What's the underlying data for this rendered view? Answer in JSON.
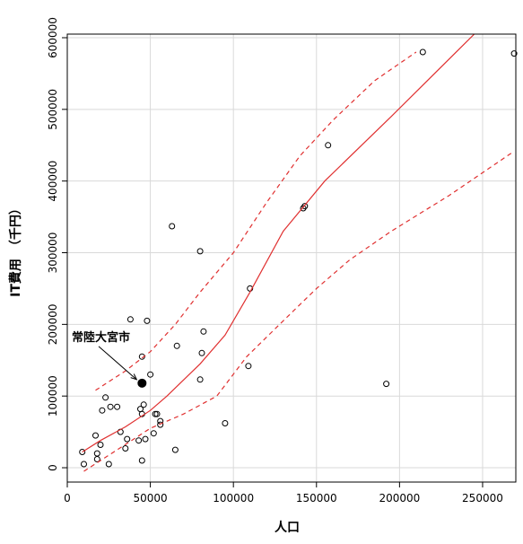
{
  "chart_data": {
    "type": "scatter",
    "title": "",
    "xlabel": "人口",
    "ylabel": "IT費用　（千円）",
    "xlim": [
      0,
      270000
    ],
    "ylim": [
      -20000,
      605000
    ],
    "x_ticks": [
      0,
      50000,
      100000,
      150000,
      200000,
      250000
    ],
    "y_ticks": [
      0,
      100000,
      200000,
      300000,
      400000,
      500000,
      600000
    ],
    "x_tick_labels": [
      "0",
      "50000",
      "100000",
      "150000",
      "200000",
      "250000"
    ],
    "y_tick_labels": [
      "0",
      "100000",
      "200000",
      "300000",
      "400000",
      "500000",
      "600000"
    ],
    "grid": true,
    "colors": {
      "points": "#000000",
      "fit_line": "#e03030",
      "ci_line": "#e03030",
      "grid": "#d9d9d9",
      "highlight": "#000000"
    },
    "series": [
      {
        "type": "scatter",
        "points": [
          [
            9000,
            22000
          ],
          [
            10000,
            5000
          ],
          [
            17000,
            45000
          ],
          [
            18000,
            12000
          ],
          [
            18000,
            20000
          ],
          [
            20000,
            32000
          ],
          [
            21000,
            80000
          ],
          [
            23000,
            98000
          ],
          [
            25000,
            5000
          ],
          [
            26000,
            85000
          ],
          [
            30000,
            85000
          ],
          [
            32000,
            50000
          ],
          [
            35000,
            27000
          ],
          [
            36000,
            40000
          ],
          [
            38000,
            207000
          ],
          [
            43000,
            38000
          ],
          [
            44000,
            82000
          ],
          [
            45000,
            75000
          ],
          [
            45000,
            10000
          ],
          [
            45000,
            155000
          ],
          [
            46000,
            88000
          ],
          [
            47000,
            40000
          ],
          [
            48000,
            205000
          ],
          [
            50000,
            130000
          ],
          [
            52000,
            48000
          ],
          [
            53000,
            75000
          ],
          [
            54000,
            75000
          ],
          [
            56000,
            60000
          ],
          [
            56000,
            65000
          ],
          [
            63000,
            337000
          ],
          [
            65000,
            25000
          ],
          [
            66000,
            170000
          ],
          [
            80000,
            302000
          ],
          [
            80000,
            123000
          ],
          [
            81000,
            160000
          ],
          [
            82000,
            190000
          ],
          [
            95000,
            62000
          ],
          [
            109000,
            142000
          ],
          [
            110000,
            250000
          ],
          [
            142000,
            362000
          ],
          [
            143000,
            365000
          ],
          [
            157000,
            450000
          ],
          [
            192000,
            117000
          ],
          [
            214000,
            580000
          ],
          [
            269000,
            578000
          ]
        ]
      },
      {
        "type": "line",
        "style": "solid",
        "points": [
          [
            9000,
            22000
          ],
          [
            20000,
            38000
          ],
          [
            35000,
            57000
          ],
          [
            50000,
            80000
          ],
          [
            60000,
            100000
          ],
          [
            80000,
            145000
          ],
          [
            95000,
            185000
          ],
          [
            110000,
            245000
          ],
          [
            130000,
            330000
          ],
          [
            155000,
            400000
          ],
          [
            195000,
            490000
          ],
          [
            245000,
            605000
          ]
        ]
      },
      {
        "type": "line",
        "style": "dashed",
        "points": [
          [
            17000,
            108000
          ],
          [
            35000,
            135000
          ],
          [
            50000,
            162000
          ],
          [
            65000,
            200000
          ],
          [
            80000,
            245000
          ],
          [
            100000,
            300000
          ],
          [
            120000,
            370000
          ],
          [
            140000,
            435000
          ],
          [
            160000,
            485000
          ],
          [
            185000,
            540000
          ],
          [
            210000,
            580000
          ]
        ]
      },
      {
        "type": "line",
        "style": "dashed",
        "points": [
          [
            10000,
            -5000
          ],
          [
            30000,
            25000
          ],
          [
            50000,
            55000
          ],
          [
            70000,
            75000
          ],
          [
            90000,
            100000
          ],
          [
            108000,
            155000
          ],
          [
            130000,
            205000
          ],
          [
            150000,
            250000
          ],
          [
            170000,
            290000
          ],
          [
            195000,
            330000
          ],
          [
            230000,
            380000
          ],
          [
            268000,
            440000
          ]
        ]
      }
    ],
    "annotation": {
      "text": "常陸大宮市",
      "point": [
        45000,
        118000
      ]
    }
  }
}
